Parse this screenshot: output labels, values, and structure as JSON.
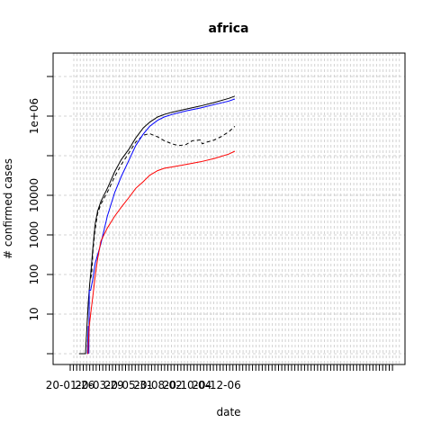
{
  "chart_data": {
    "type": "line",
    "title": "africa",
    "xlabel": "date",
    "ylabel": "# confirmed cases",
    "x_tick_labels": [
      "20-01-26",
      "20-03-29",
      "20-05-31",
      "20-08-02",
      "20-10-04",
      "20-12-06"
    ],
    "y_scale": "log10",
    "y_tick_labels": [
      "10",
      "100",
      "1000",
      "10000",
      "1e+06"
    ],
    "ylim": [
      0.5,
      100000000
    ],
    "grid": true,
    "grid_style": "dashed-light-gray",
    "series": [
      {
        "color": "#000000",
        "dash": "solid",
        "points": [
          [
            "2020-02-14",
            1
          ],
          [
            "2020-02-28",
            1
          ],
          [
            "2020-03-01",
            3
          ],
          [
            "2020-03-05",
            20
          ],
          [
            "2020-03-08",
            60
          ],
          [
            "2020-03-11",
            130
          ],
          [
            "2020-03-15",
            500
          ],
          [
            "2020-03-20",
            2000
          ],
          [
            "2020-03-25",
            4000
          ],
          [
            "2020-04-01",
            7000
          ],
          [
            "2020-04-15",
            15000
          ],
          [
            "2020-05-01",
            40000
          ],
          [
            "2020-05-15",
            80000
          ],
          [
            "2020-06-01",
            150000
          ],
          [
            "2020-06-15",
            280000
          ],
          [
            "2020-07-01",
            500000
          ],
          [
            "2020-07-15",
            700000
          ],
          [
            "2020-08-01",
            950000
          ],
          [
            "2020-08-15",
            1100000
          ],
          [
            "2020-09-01",
            1250000
          ],
          [
            "2020-10-01",
            1500000
          ],
          [
            "2020-11-01",
            1800000
          ],
          [
            "2020-12-01",
            2200000
          ],
          [
            "2021-01-01",
            2800000
          ],
          [
            "2021-01-14",
            3200000
          ]
        ]
      },
      {
        "color": "#000000",
        "dash": "dashed",
        "points": [
          [
            "2020-03-10",
            80
          ],
          [
            "2020-03-12",
            100
          ],
          [
            "2020-03-15",
            400
          ],
          [
            "2020-03-20",
            1500
          ],
          [
            "2020-03-25",
            3500
          ],
          [
            "2020-04-01",
            6000
          ],
          [
            "2020-04-15",
            12000
          ],
          [
            "2020-05-01",
            30000
          ],
          [
            "2020-05-15",
            60000
          ],
          [
            "2020-06-01",
            120000
          ],
          [
            "2020-06-15",
            220000
          ],
          [
            "2020-07-01",
            330000
          ],
          [
            "2020-07-15",
            360000
          ],
          [
            "2020-08-01",
            300000
          ],
          [
            "2020-08-15",
            240000
          ],
          [
            "2020-09-01",
            200000
          ],
          [
            "2020-09-15",
            180000
          ],
          [
            "2020-10-01",
            190000
          ],
          [
            "2020-10-15",
            240000
          ],
          [
            "2020-11-01",
            250000
          ],
          [
            "2020-11-05",
            200000
          ],
          [
            "2020-11-15",
            220000
          ],
          [
            "2020-12-01",
            250000
          ],
          [
            "2020-12-15",
            300000
          ],
          [
            "2021-01-01",
            400000
          ],
          [
            "2021-01-14",
            550000
          ]
        ]
      },
      {
        "color": "#0000ff",
        "dash": "solid",
        "points": [
          [
            "2020-03-03",
            1
          ],
          [
            "2020-03-05",
            5
          ],
          [
            "2020-03-06",
            1
          ],
          [
            "2020-03-07",
            40
          ],
          [
            "2020-03-10",
            40
          ],
          [
            "2020-03-15",
            80
          ],
          [
            "2020-03-20",
            200
          ],
          [
            "2020-04-01",
            600
          ],
          [
            "2020-04-15",
            3000
          ],
          [
            "2020-05-01",
            12000
          ],
          [
            "2020-05-15",
            30000
          ],
          [
            "2020-06-01",
            80000
          ],
          [
            "2020-06-15",
            180000
          ],
          [
            "2020-07-01",
            350000
          ],
          [
            "2020-07-15",
            550000
          ],
          [
            "2020-08-01",
            780000
          ],
          [
            "2020-08-15",
            950000
          ],
          [
            "2020-09-01",
            1100000
          ],
          [
            "2020-10-01",
            1350000
          ],
          [
            "2020-11-01",
            1600000
          ],
          [
            "2020-12-01",
            1950000
          ],
          [
            "2021-01-01",
            2400000
          ],
          [
            "2021-01-14",
            2700000
          ]
        ]
      },
      {
        "color": "#ff0000",
        "dash": "solid",
        "points": [
          [
            "2020-03-03",
            1
          ],
          [
            "2020-03-04",
            1
          ],
          [
            "2020-03-07",
            5
          ],
          [
            "2020-03-10",
            10
          ],
          [
            "2020-03-15",
            30
          ],
          [
            "2020-03-20",
            100
          ],
          [
            "2020-03-25",
            250
          ],
          [
            "2020-04-01",
            700
          ],
          [
            "2020-04-15",
            1500
          ],
          [
            "2020-05-01",
            3000
          ],
          [
            "2020-05-15",
            5000
          ],
          [
            "2020-06-01",
            9000
          ],
          [
            "2020-06-15",
            15000
          ],
          [
            "2020-07-01",
            22000
          ],
          [
            "2020-07-15",
            32000
          ],
          [
            "2020-08-01",
            42000
          ],
          [
            "2020-08-15",
            48000
          ],
          [
            "2020-09-01",
            52000
          ],
          [
            "2020-10-01",
            60000
          ],
          [
            "2020-11-01",
            70000
          ],
          [
            "2020-12-01",
            85000
          ],
          [
            "2021-01-01",
            110000
          ],
          [
            "2021-01-14",
            130000
          ]
        ]
      }
    ]
  }
}
